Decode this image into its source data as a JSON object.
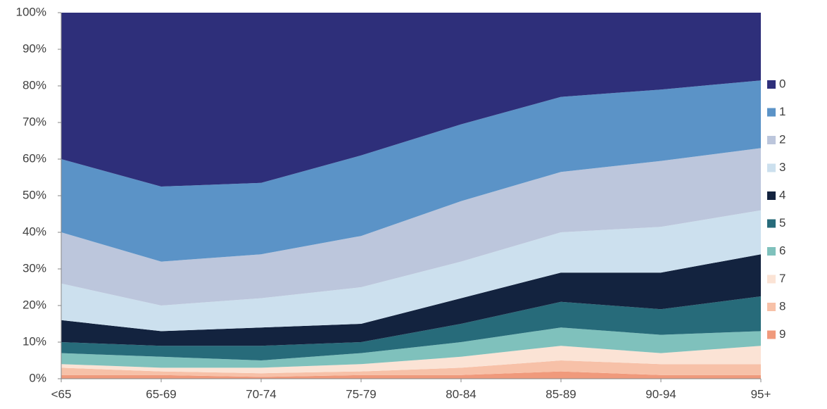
{
  "chart_data": {
    "type": "area",
    "stacked": true,
    "categories": [
      "<65",
      "65-69",
      "70-74",
      "75-79",
      "80-84",
      "85-89",
      "90-94",
      "95+"
    ],
    "series": [
      {
        "name": "0",
        "color": "#2e2f7a",
        "values": [
          40,
          47.5,
          46.5,
          39,
          30.5,
          23,
          21,
          18.5
        ]
      },
      {
        "name": "1",
        "color": "#5b93c7",
        "values": [
          20,
          20.5,
          19.5,
          22,
          21,
          20.5,
          19.5,
          18.5
        ]
      },
      {
        "name": "2",
        "color": "#bcc6dc",
        "values": [
          14,
          12,
          12,
          14,
          16.5,
          16.5,
          18,
          17
        ]
      },
      {
        "name": "3",
        "color": "#cce0ee",
        "values": [
          10,
          7,
          8,
          10,
          10,
          11,
          12.5,
          12
        ]
      },
      {
        "name": "4",
        "color": "#13233f",
        "values": [
          6,
          4,
          5,
          5,
          7,
          8,
          10,
          11.5
        ]
      },
      {
        "name": "5",
        "color": "#276b7a",
        "values": [
          3,
          3,
          4,
          3,
          5,
          7,
          7,
          9.5
        ]
      },
      {
        "name": "6",
        "color": "#7fc1bc",
        "values": [
          3,
          3,
          2,
          3,
          4,
          5,
          5,
          4
        ]
      },
      {
        "name": "7",
        "color": "#fbe3d5",
        "values": [
          1,
          1,
          1.5,
          2,
          3,
          4,
          3,
          5
        ]
      },
      {
        "name": "8",
        "color": "#f7c1a8",
        "values": [
          2,
          1,
          1,
          1,
          2,
          3,
          3,
          3
        ]
      },
      {
        "name": "9",
        "color": "#f09a7c",
        "values": [
          1,
          1,
          0.5,
          1,
          1,
          2,
          1,
          1
        ]
      }
    ],
    "ylim": [
      0,
      100
    ],
    "yticks": [
      {
        "value": 0,
        "label": "0%"
      },
      {
        "value": 10,
        "label": "10%"
      },
      {
        "value": 20,
        "label": "20%"
      },
      {
        "value": 30,
        "label": "30%"
      },
      {
        "value": 40,
        "label": "40%"
      },
      {
        "value": 50,
        "label": "50%"
      },
      {
        "value": 60,
        "label": "60%"
      },
      {
        "value": 70,
        "label": "70%"
      },
      {
        "value": 80,
        "label": "80%"
      },
      {
        "value": 90,
        "label": "90%"
      },
      {
        "value": 100,
        "label": "100%"
      }
    ],
    "legend": "right"
  }
}
